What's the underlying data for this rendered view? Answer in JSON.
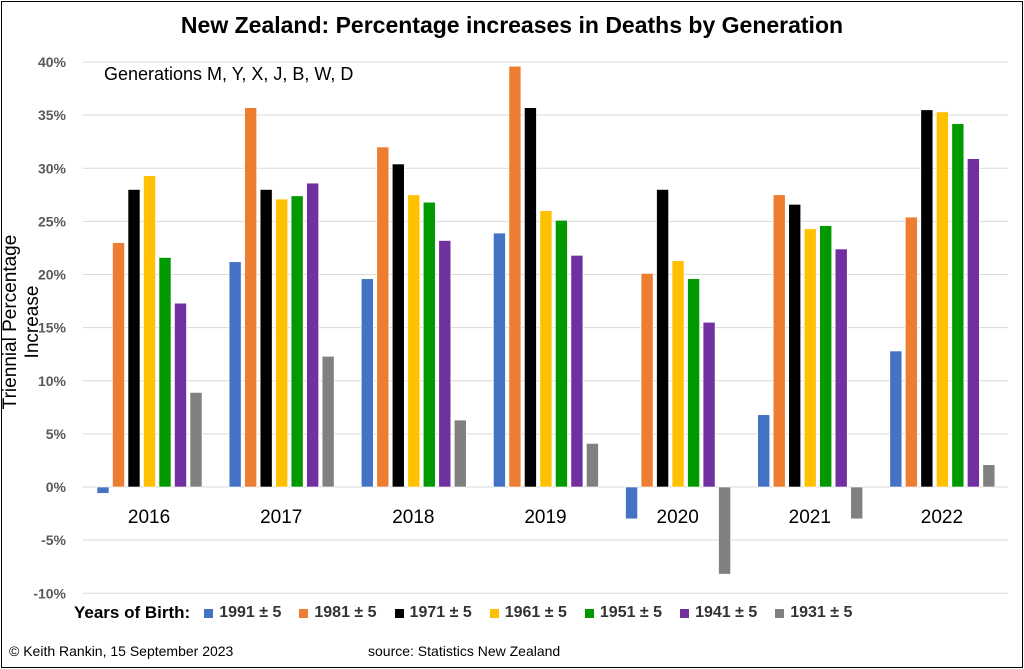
{
  "chart_data": {
    "type": "bar",
    "title": "New Zealand: Percentage increases in Deaths by Generation",
    "annotation": "Generations  M, Y, X, J, B, W, D",
    "ylabel": "Triennial Percentage Increase",
    "xlabel": "",
    "ylim": [
      -10,
      40
    ],
    "yticks": [
      -10,
      -5,
      0,
      5,
      10,
      15,
      20,
      25,
      30,
      35,
      40
    ],
    "ytick_labels": [
      "-10%",
      "-5%",
      "0%",
      "5%",
      "10%",
      "15%",
      "20%",
      "25%",
      "30%",
      "35%",
      "40%"
    ],
    "grid": true,
    "legend_placement": "bottom",
    "legend_title": "Years of Birth:",
    "categories": [
      "2016",
      "2017",
      "2018",
      "2019",
      "2020",
      "2021",
      "2022"
    ],
    "series": [
      {
        "name": "1991 ± 5",
        "color": "#4472C4",
        "values": [
          -0.6,
          21.2,
          19.6,
          23.9,
          -3.0,
          6.8,
          12.8
        ]
      },
      {
        "name": "1981 ± 5",
        "color": "#ED7D31",
        "values": [
          23.0,
          35.7,
          32.0,
          39.6,
          20.1,
          27.5,
          25.4
        ]
      },
      {
        "name": "1971 ± 5",
        "color": "#000000",
        "values": [
          28.0,
          28.0,
          30.4,
          35.7,
          28.0,
          26.6,
          35.5
        ]
      },
      {
        "name": "1961 ± 5",
        "color": "#FFC000",
        "values": [
          29.3,
          27.1,
          27.5,
          26.0,
          21.3,
          24.3,
          35.3
        ]
      },
      {
        "name": "1951 ± 5",
        "color": "#009900",
        "values": [
          21.6,
          27.4,
          26.8,
          25.1,
          19.6,
          24.6,
          34.2
        ]
      },
      {
        "name": "1941 ± 5",
        "color": "#7030A0",
        "values": [
          17.3,
          28.6,
          23.2,
          21.8,
          15.5,
          22.4,
          30.9
        ]
      },
      {
        "name": "1931 ± 5",
        "color": "#808080",
        "values": [
          8.9,
          12.3,
          6.3,
          4.1,
          -8.2,
          -3.0,
          2.1
        ]
      }
    ]
  },
  "footer": {
    "credit": "© Keith Rankin, 15 September 2023",
    "source": "source: Statistics New Zealand"
  }
}
